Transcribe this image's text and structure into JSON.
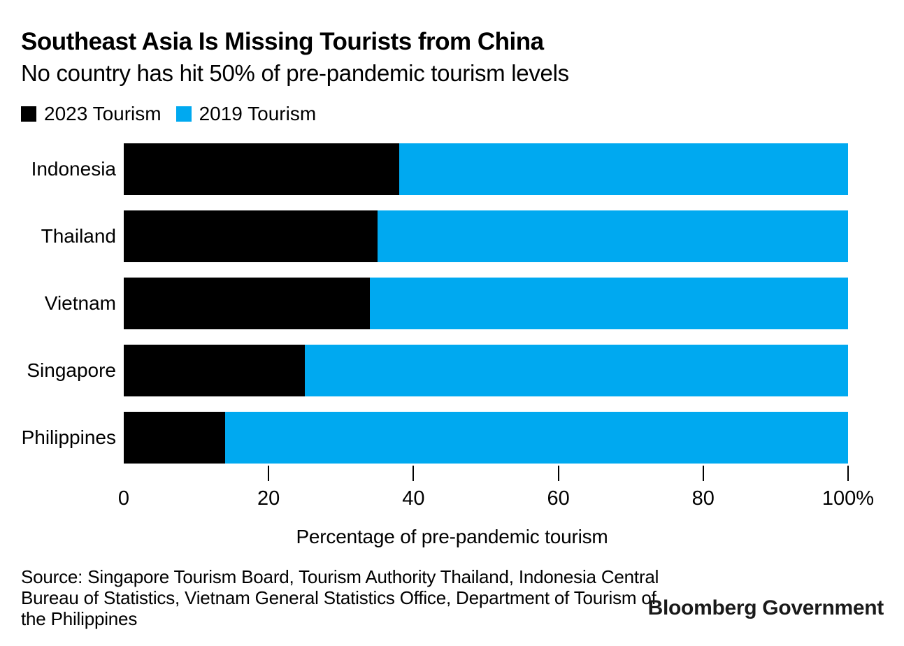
{
  "chart": {
    "title": "Southeast Asia Is Missing Tourists from China",
    "subtitle": "No country has hit 50% of pre-pandemic tourism levels",
    "xlabel": "Percentage of pre-pandemic tourism"
  },
  "chart_data": {
    "type": "bar",
    "orientation": "horizontal",
    "stacked": true,
    "title": "Southeast Asia Is Missing Tourists from China",
    "subtitle": "No country has hit 50% of pre-pandemic tourism levels",
    "categories": [
      "Indonesia",
      "Thailand",
      "Vietnam",
      "Singapore",
      "Philippines"
    ],
    "series": [
      {
        "name": "2023 Tourism",
        "color": "#000000",
        "values": [
          38,
          35,
          34,
          25,
          14
        ]
      },
      {
        "name": "2019 Tourism",
        "color": "#00a9f0",
        "values": [
          62,
          65,
          66,
          75,
          86
        ]
      }
    ],
    "xlabel": "Percentage of pre-pandemic tourism",
    "xlim": [
      0,
      100
    ],
    "xticks": [
      0,
      20,
      40,
      60,
      80,
      100
    ],
    "xtick_labels": [
      "0",
      "20",
      "40",
      "60",
      "80",
      "100%"
    ],
    "legend_position": "top-left",
    "grid": false
  },
  "source": {
    "lines": [
      "Source: Singapore Tourism Board, Tourism Authority Thailand, Indonesia Central",
      "Bureau of Statistics, Vietnam General Statistics Office, Department of Tourism of",
      "the Philippines"
    ]
  },
  "branding": {
    "logo_text": "Bloomberg Government"
  },
  "colors": {
    "bar_2023": "#000000",
    "bar_2019": "#00a9f0",
    "text": "#000000",
    "background": "#ffffff"
  }
}
